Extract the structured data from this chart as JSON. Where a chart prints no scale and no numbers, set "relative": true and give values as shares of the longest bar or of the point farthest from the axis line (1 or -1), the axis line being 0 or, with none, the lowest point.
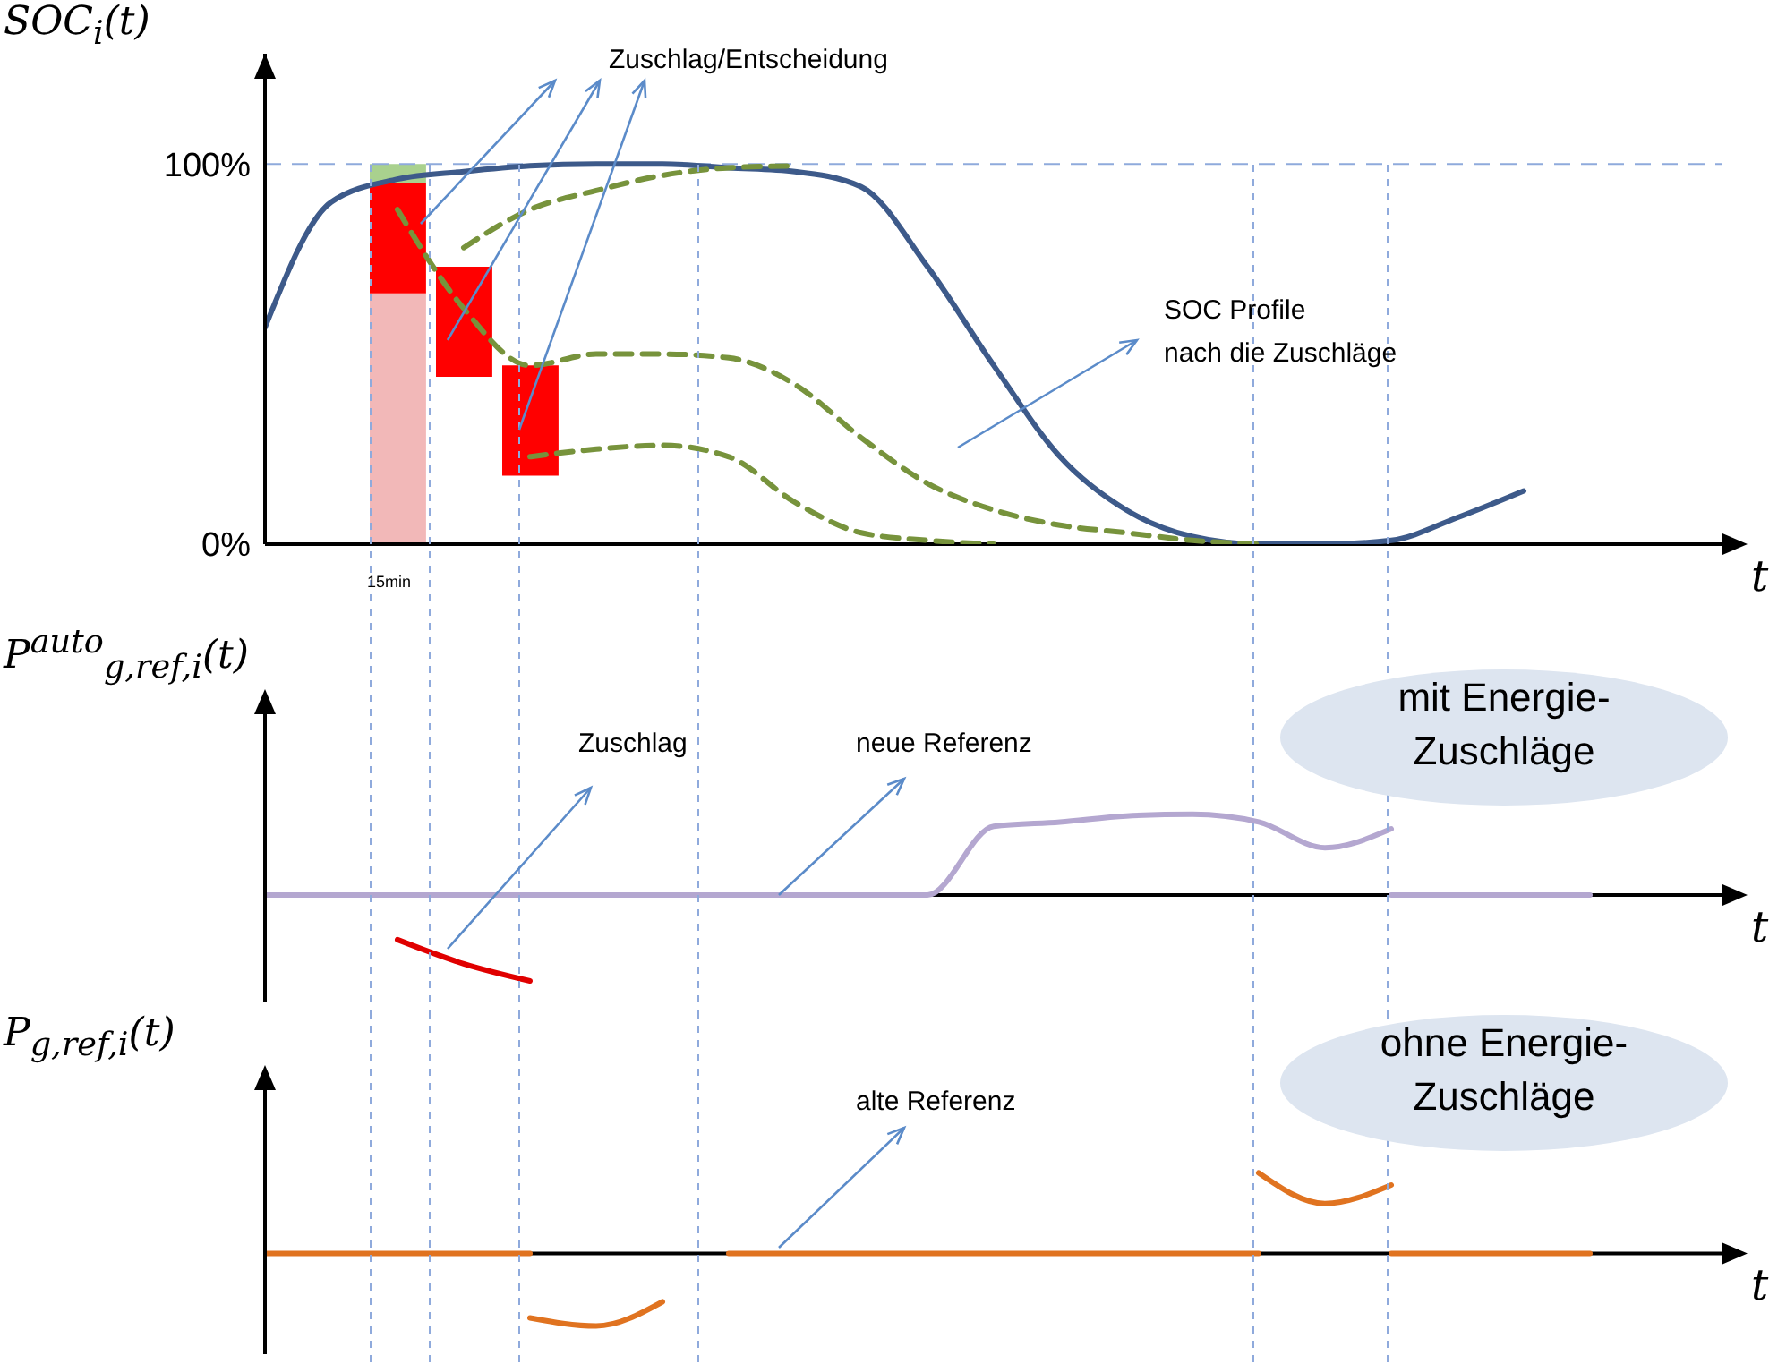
{
  "chart_data": [
    {
      "type": "line",
      "ylabel": "SOC$_{i}$(t)",
      "xlabel": "t",
      "categories": [
        null,
        null,
        null,
        null,
        null,
        null,
        null,
        null,
        null,
        null,
        null,
        null,
        null,
        null,
        null,
        null,
        null,
        null,
        null,
        null,
        null,
        null
      ],
      "ylim": [
        0,
        129
      ],
      "yticks": [
        {
          "value": 0,
          "label": "0%"
        },
        {
          "value": 100,
          "label": "100%"
        }
      ],
      "tick_labels": "y",
      "marker": "none",
      "series": [
        {
          "type": "bar",
          "color": "#f2b8b8",
          "base": [
            null,
            null,
            0,
            null,
            null,
            null,
            null,
            null,
            null,
            null,
            null,
            null,
            null,
            null,
            null,
            null,
            null,
            null,
            null,
            null,
            null,
            null
          ],
          "values": [
            null,
            null,
            66,
            null,
            null,
            null,
            null,
            null,
            null,
            null,
            null,
            null,
            null,
            null,
            null,
            null,
            null,
            null,
            null,
            null,
            null,
            null
          ]
        },
        {
          "type": "bar",
          "color": "#a9d18e",
          "base": [
            null,
            null,
            95,
            null,
            null,
            null,
            null,
            null,
            null,
            null,
            null,
            null,
            null,
            null,
            null,
            null,
            null,
            null,
            null,
            null,
            null,
            null
          ],
          "values": [
            null,
            null,
            5,
            null,
            null,
            null,
            null,
            null,
            null,
            null,
            null,
            null,
            null,
            null,
            null,
            null,
            null,
            null,
            null,
            null,
            null,
            null
          ]
        },
        {
          "type": "bar",
          "color": "#ff0000",
          "base": [
            null,
            null,
            66,
            44,
            18,
            null,
            null,
            null,
            null,
            null,
            null,
            null,
            null,
            null,
            null,
            null,
            null,
            null,
            null,
            null,
            null,
            null
          ],
          "values": [
            null,
            null,
            29,
            29,
            29,
            null,
            null,
            null,
            null,
            null,
            null,
            null,
            null,
            null,
            null,
            null,
            null,
            null,
            null,
            null,
            null,
            null
          ]
        },
        {
          "color": "#3d5a8a",
          "line_style": "solid",
          "values": [
            57,
            90,
            96,
            98,
            99.5,
            100,
            100,
            99,
            98,
            94,
            73,
            47,
            23,
            9,
            2,
            0,
            0,
            1,
            7,
            14,
            null,
            null
          ]
        },
        {
          "color": "#77933c",
          "line_style": "dashed",
          "values": [
            null,
            null,
            null,
            78,
            88,
            93,
            97,
            99,
            99.5,
            null,
            null,
            null,
            null,
            null,
            null,
            null,
            null,
            null,
            null,
            null,
            null,
            null
          ]
        },
        {
          "color": "#77933c",
          "line_style": "dashed",
          "values": [
            null,
            null,
            88,
            62,
            47,
            50,
            50,
            49,
            42,
            28,
            16,
            9,
            5,
            3,
            1,
            0,
            null,
            null,
            null,
            null,
            null,
            null
          ]
        },
        {
          "color": "#77933c",
          "line_style": "dashed",
          "values": [
            null,
            null,
            null,
            null,
            23,
            25,
            26,
            23,
            11,
            3,
            1,
            0,
            null,
            null,
            null,
            null,
            null,
            null,
            null,
            null,
            null,
            null
          ]
        }
      ],
      "ref_lines": [
        {
          "axis": "y",
          "value": 100,
          "color": "#8faadc",
          "line_style": "dashed"
        }
      ],
      "annotations": [
        "Zuschlag/Entscheidung",
        "SOC Profile\nnach die Zuschläge",
        "15min"
      ]
    },
    {
      "type": "line",
      "ylabel": "P$^{auto}$$_{g,ref,i}$(t)",
      "xlabel": "t",
      "relative": true,
      "tick_labels": false,
      "marker": "none",
      "categories": [
        null,
        null,
        null,
        null,
        null,
        null,
        null,
        null,
        null,
        null,
        null,
        null,
        null,
        null,
        null,
        null,
        null,
        null,
        null,
        null,
        null,
        null
      ],
      "series": [
        {
          "color": "#b4a7d0",
          "line_style": "solid",
          "values": [
            0,
            0,
            0,
            0,
            0,
            0,
            0,
            0,
            0,
            0,
            0,
            0.8,
            0.85,
            0.92,
            0.94,
            0.85,
            0.55,
            0.77,
            null,
            null,
            null,
            null
          ]
        },
        {
          "color": "#b4a7d0",
          "line_style": "solid",
          "values": [
            null,
            null,
            null,
            null,
            null,
            null,
            null,
            null,
            null,
            null,
            null,
            null,
            null,
            null,
            null,
            null,
            null,
            0,
            0,
            0,
            0,
            null
          ]
        },
        {
          "color": "#e00000",
          "line_style": "solid",
          "values": [
            null,
            null,
            -0.52,
            -0.8,
            -1,
            null,
            null,
            null,
            null,
            null,
            null,
            null,
            null,
            null,
            null,
            null,
            null,
            null,
            null,
            null,
            null,
            null
          ]
        }
      ],
      "annotations": [
        "Zuschlag",
        "neue Referenz",
        "mit Energie-\nZuschläge"
      ]
    },
    {
      "type": "line",
      "ylabel": "P$_{g,ref,i}$(t)",
      "xlabel": "t",
      "relative": true,
      "tick_labels": false,
      "marker": "none",
      "categories": [
        null,
        null,
        null,
        null,
        null,
        null,
        null,
        null,
        null,
        null,
        null,
        null,
        null,
        null,
        null,
        null,
        null,
        null,
        null,
        null,
        null,
        null
      ],
      "series": [
        {
          "color": "#e07320",
          "line_style": "solid",
          "values": [
            0,
            0,
            0,
            0,
            0,
            null,
            null,
            null,
            null,
            null,
            null,
            null,
            null,
            null,
            null,
            null,
            null,
            null,
            null,
            null,
            null,
            null
          ]
        },
        {
          "color": "#e07320",
          "line_style": "solid",
          "values": [
            null,
            null,
            null,
            null,
            -0.8,
            -0.9,
            -0.6,
            null,
            null,
            null,
            null,
            null,
            null,
            null,
            null,
            null,
            null,
            null,
            null,
            null,
            null,
            null
          ]
        },
        {
          "color": "#e07320",
          "line_style": "solid",
          "values": [
            null,
            null,
            null,
            null,
            null,
            null,
            null,
            0,
            0,
            0,
            0,
            0,
            0,
            0,
            0,
            0,
            null,
            null,
            null,
            null,
            null,
            null
          ]
        },
        {
          "color": "#e07320",
          "line_style": "solid",
          "values": [
            null,
            null,
            null,
            null,
            null,
            null,
            null,
            null,
            null,
            null,
            null,
            null,
            null,
            null,
            null,
            1,
            0.62,
            0.85,
            null,
            null,
            null,
            null
          ]
        },
        {
          "color": "#e07320",
          "line_style": "solid",
          "values": [
            null,
            null,
            null,
            null,
            null,
            null,
            null,
            null,
            null,
            null,
            null,
            null,
            null,
            null,
            null,
            null,
            null,
            0,
            0,
            0,
            0,
            null
          ]
        }
      ],
      "annotations": [
        "alte Referenz",
        "ohne Energie-\nZuschläge"
      ]
    }
  ]
}
